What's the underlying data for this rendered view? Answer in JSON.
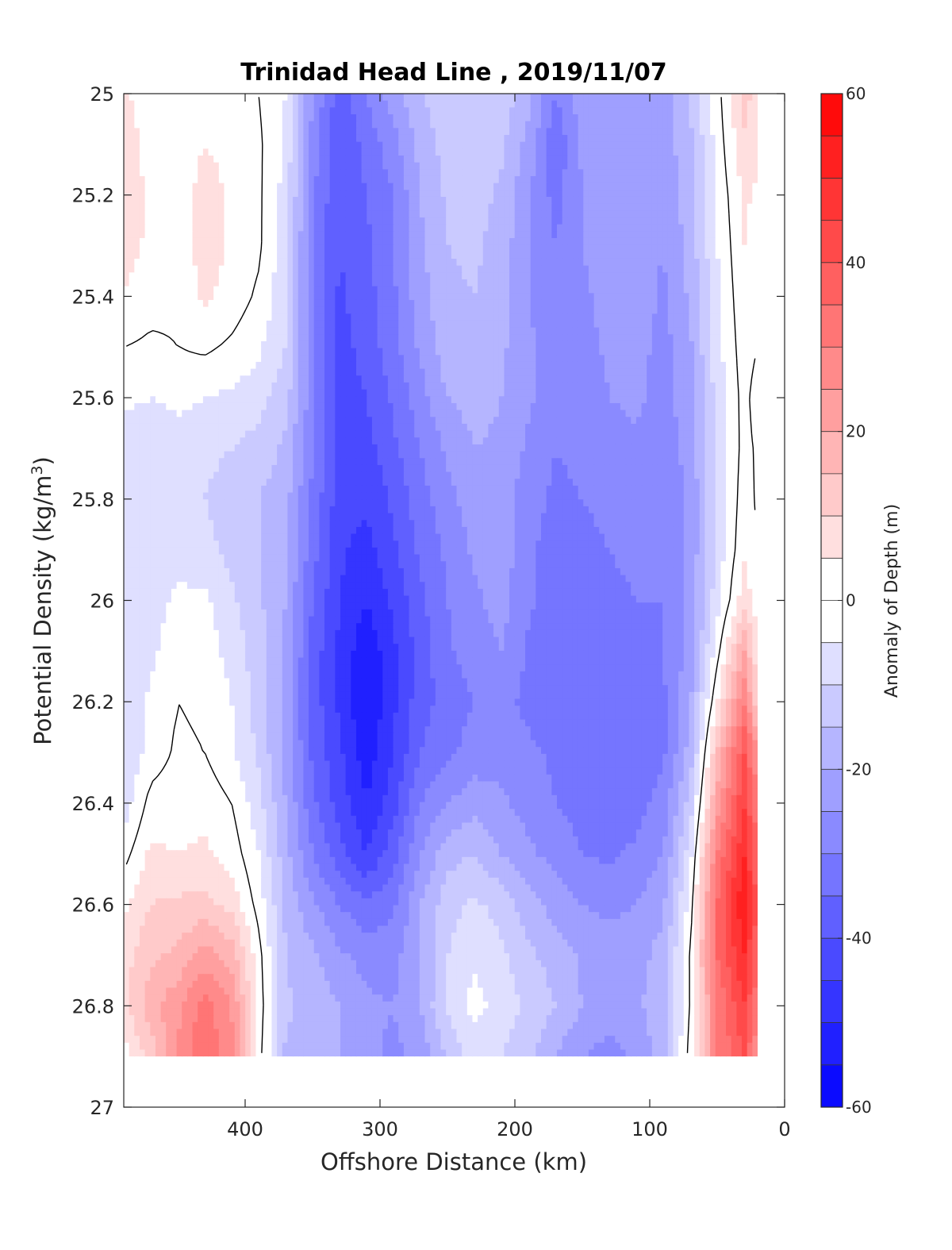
{
  "chart_data": {
    "type": "heatmap",
    "title": "Trinidad Head Line , 2019/11/07",
    "xlabel": "Offshore Distance (km)",
    "ylabel_main": "Potential Density (kg/m",
    "ylabel_sup": "3",
    "ylabel_close": ")",
    "colorbar_label": "Anomaly of Depth (m)",
    "xlim": [
      490,
      0
    ],
    "x_reversed": true,
    "ylim": [
      25,
      27
    ],
    "y_reversed": true,
    "x_ticks": [
      {
        "value": 400,
        "label": "400"
      },
      {
        "value": 300,
        "label": "300"
      },
      {
        "value": 200,
        "label": "200"
      },
      {
        "value": 100,
        "label": "100"
      },
      {
        "value": 0,
        "label": "0"
      }
    ],
    "y_ticks": [
      {
        "value": 25,
        "label": "25"
      },
      {
        "value": 25.2,
        "label": "25.2"
      },
      {
        "value": 25.4,
        "label": "25.4"
      },
      {
        "value": 25.6,
        "label": "25.6"
      },
      {
        "value": 25.8,
        "label": "25.8"
      },
      {
        "value": 26,
        "label": "26"
      },
      {
        "value": 26.2,
        "label": "26.2"
      },
      {
        "value": 26.4,
        "label": "26.4"
      },
      {
        "value": 26.6,
        "label": "26.6"
      },
      {
        "value": 26.8,
        "label": "26.8"
      },
      {
        "value": 27,
        "label": "27"
      }
    ],
    "colorbar": {
      "range": [
        -60,
        60
      ],
      "step": 5,
      "ticks": [
        {
          "value": 60,
          "label": "60"
        },
        {
          "value": 40,
          "label": "40"
        },
        {
          "value": 20,
          "label": "20"
        },
        {
          "value": 0,
          "label": "0"
        },
        {
          "value": -20,
          "label": "-20"
        },
        {
          "value": -40,
          "label": "-40"
        },
        {
          "value": -60,
          "label": "-60"
        }
      ]
    },
    "data_extent": {
      "x": [
        490,
        20
      ],
      "y": [
        25,
        26.9
      ]
    },
    "grid": {
      "x": [
        490,
        470,
        450,
        430,
        410,
        390,
        370,
        350,
        330,
        310,
        290,
        270,
        250,
        230,
        210,
        190,
        170,
        150,
        130,
        110,
        90,
        70,
        50,
        30,
        20
      ],
      "y": [
        25.0,
        25.1,
        25.2,
        25.3,
        25.4,
        25.5,
        25.6,
        25.7,
        25.8,
        25.9,
        26.0,
        26.1,
        26.2,
        26.3,
        26.4,
        26.5,
        26.6,
        26.7,
        26.8,
        26.9
      ],
      "z": [
        [
          6,
          2,
          1,
          2,
          2,
          0,
          -5,
          -25,
          -38,
          -30,
          -22,
          -15,
          -12,
          -10,
          -12,
          -18,
          -30,
          -22,
          -20,
          -20,
          -22,
          -15,
          -2,
          12,
          8
        ],
        [
          8,
          3,
          1,
          5,
          3,
          1,
          -6,
          -27,
          -40,
          -33,
          -27,
          -18,
          -13,
          -12,
          -14,
          -22,
          -34,
          -24,
          -21,
          -20,
          -23,
          -16,
          -3,
          9,
          6
        ],
        [
          8,
          4,
          1,
          8,
          4,
          1,
          -7,
          -29,
          -40,
          -35,
          -30,
          -20,
          -14,
          -13,
          -16,
          -24,
          -32,
          -25,
          -22,
          -21,
          -24,
          -17,
          -4,
          6,
          4
        ],
        [
          7,
          4,
          1,
          8,
          4,
          1,
          -8,
          -30,
          -40,
          -36,
          -30,
          -21,
          -15,
          -14,
          -17,
          -25,
          -30,
          -25,
          -22,
          -22,
          -25,
          -18,
          -5,
          5,
          2
        ],
        [
          5,
          2,
          1,
          6,
          3,
          -1,
          -9,
          -30,
          -41,
          -37,
          -31,
          -22,
          -16,
          -15,
          -18,
          -25,
          -28,
          -26,
          -23,
          -22,
          -26,
          -19,
          -6,
          4,
          1
        ],
        [
          0,
          -1,
          0,
          1,
          -1,
          -4,
          -10,
          -28,
          -42,
          -38,
          -32,
          -24,
          -17,
          -16,
          -19,
          -24,
          -28,
          -27,
          -24,
          -23,
          -27,
          -21,
          -7,
          3,
          0
        ],
        [
          -4,
          -5,
          -4,
          -5,
          -6,
          -8,
          -13,
          -28,
          -42,
          -40,
          -34,
          -27,
          -20,
          -18,
          -20,
          -24,
          -29,
          -28,
          -25,
          -24,
          -27,
          -22,
          -8,
          2,
          -3
        ],
        [
          -7,
          -8,
          -7,
          -8,
          -10,
          -12,
          -16,
          -30,
          -43,
          -42,
          -36,
          -30,
          -24,
          -20,
          -21,
          -26,
          -30,
          -29,
          -27,
          -26,
          -28,
          -23,
          -9,
          2,
          -1
        ],
        [
          -8,
          -9,
          -8,
          -10,
          -14,
          -15,
          -18,
          -31,
          -43,
          -44,
          -39,
          -32,
          -27,
          -22,
          -22,
          -28,
          -31,
          -30,
          -29,
          -28,
          -29,
          -24,
          -9,
          3,
          -1
        ],
        [
          -7,
          -8,
          -7,
          -8,
          -12,
          -15,
          -19,
          -33,
          -44,
          -47,
          -41,
          -34,
          -29,
          -24,
          -22,
          -29,
          -32,
          -31,
          -30,
          -29,
          -30,
          -24,
          -8,
          4,
          0
        ],
        [
          -7,
          -7,
          -4,
          -4,
          -9,
          -14,
          -20,
          -35,
          -45,
          -50,
          -44,
          -36,
          -30,
          -26,
          -23,
          -29,
          -32,
          -32,
          -31,
          -30,
          -30,
          -24,
          -7,
          8,
          2
        ],
        [
          -8,
          -6,
          -2,
          -2,
          -7,
          -13,
          -21,
          -37,
          -46,
          -54,
          -46,
          -38,
          -31,
          -27,
          -25,
          -31,
          -35,
          -34,
          -33,
          -33,
          -30,
          -23,
          -2,
          20,
          6
        ],
        [
          -9,
          -4,
          0,
          -1,
          -5,
          -12,
          -22,
          -37,
          -46,
          -55,
          -46,
          -37,
          -33,
          -30,
          -29,
          -31,
          -34,
          -35,
          -34,
          -35,
          -31,
          -21,
          5,
          30,
          10
        ],
        [
          -10,
          -3,
          1,
          0,
          -4,
          -11,
          -22,
          -36,
          -44,
          -53,
          -45,
          -35,
          -31,
          -28,
          -27,
          -29,
          -31,
          -33,
          -33,
          -34,
          -31,
          -18,
          15,
          40,
          25
        ],
        [
          -8,
          2,
          3,
          3,
          0,
          -8,
          -20,
          -34,
          -42,
          -50,
          -42,
          -30,
          -25,
          -22,
          -24,
          -27,
          -30,
          -32,
          -33,
          -32,
          -28,
          -13,
          22,
          45,
          30
        ],
        [
          -2,
          6,
          5,
          6,
          3,
          -5,
          -18,
          -30,
          -38,
          -45,
          -37,
          -25,
          -17,
          -15,
          -20,
          -24,
          -27,
          -30,
          -31,
          -29,
          -25,
          -7,
          30,
          50,
          35
        ],
        [
          4,
          10,
          11,
          12,
          8,
          -2,
          -16,
          -24,
          -30,
          -34,
          -31,
          -20,
          -12,
          -9,
          -12,
          -18,
          -22,
          -25,
          -26,
          -25,
          -21,
          -3,
          35,
          55,
          38
        ],
        [
          8,
          14,
          16,
          22,
          18,
          2,
          -15,
          -19,
          -24,
          -27,
          -27,
          -20,
          -10,
          -6,
          -9,
          -14,
          -17,
          -21,
          -23,
          -22,
          -18,
          0,
          35,
          50,
          35
        ],
        [
          8,
          18,
          24,
          32,
          25,
          3,
          -14,
          -17,
          -20,
          -24,
          -25,
          -20,
          -9,
          -3,
          -7,
          -11,
          -15,
          -20,
          -22,
          -21,
          -17,
          0,
          30,
          45,
          30
        ],
        [
          3,
          12,
          25,
          35,
          26,
          2,
          -16,
          -18,
          -20,
          -24,
          -26,
          -24,
          -14,
          -8,
          -10,
          -14,
          -20,
          -25,
          -27,
          -24,
          -17,
          2,
          30,
          40,
          25
        ]
      ]
    },
    "contour_level": 0
  }
}
